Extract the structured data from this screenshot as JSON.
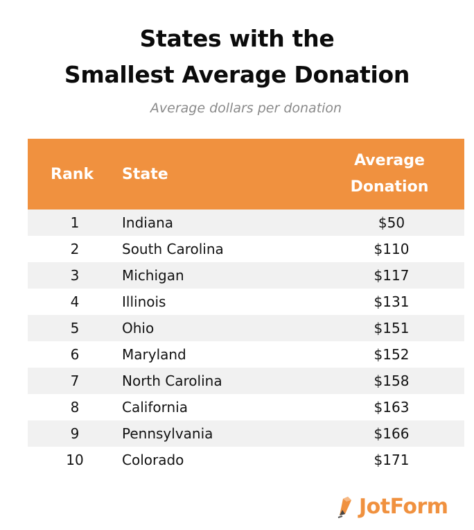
{
  "title_line1": "States with the",
  "title_line2": "Smallest Average Donation",
  "subtitle": "Average dollars per donation",
  "brand": "JotForm",
  "colors": {
    "header_bg": "#f0913f",
    "brand": "#f0913f",
    "row_shade": "#f1f1f1"
  },
  "chart_data": {
    "type": "table",
    "title": "States with the Smallest Average Donation",
    "subtitle": "Average dollars per donation",
    "columns": [
      "Rank",
      "State",
      "Average Donation"
    ],
    "header": {
      "rank": "Rank",
      "state": "State",
      "donation_line1": "Average",
      "donation_line2": "Donation"
    },
    "rows": [
      {
        "rank": "1",
        "state": "Indiana",
        "donation": "$50"
      },
      {
        "rank": "2",
        "state": "South Carolina",
        "donation": "$110"
      },
      {
        "rank": "3",
        "state": "Michigan",
        "donation": "$117"
      },
      {
        "rank": "4",
        "state": "Illinois",
        "donation": "$131"
      },
      {
        "rank": "5",
        "state": "Ohio",
        "donation": "$151"
      },
      {
        "rank": "6",
        "state": "Maryland",
        "donation": "$152"
      },
      {
        "rank": "7",
        "state": "North Carolina",
        "donation": "$158"
      },
      {
        "rank": "8",
        "state": "California",
        "donation": "$163"
      },
      {
        "rank": "9",
        "state": "Pennsylvania",
        "donation": "$166"
      },
      {
        "rank": "10",
        "state": "Colorado",
        "donation": "$171"
      }
    ]
  }
}
